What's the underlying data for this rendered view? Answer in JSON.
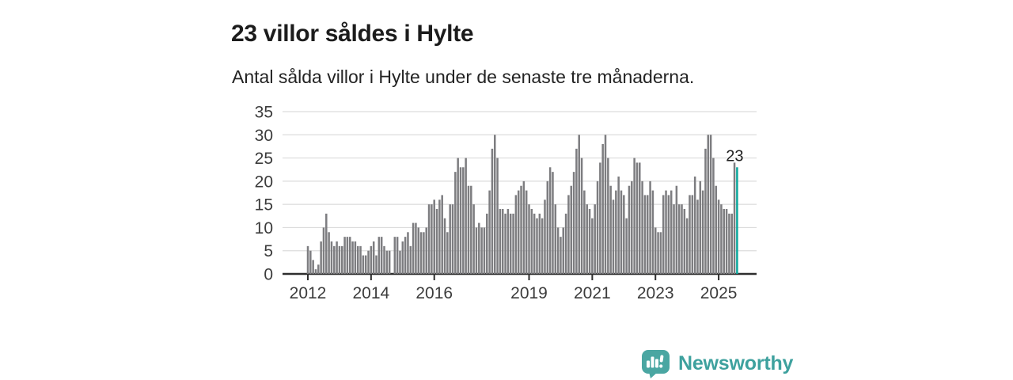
{
  "chart_data": {
    "type": "bar",
    "title": "23 villor såldes i Hylte",
    "subtitle": "Antal sålda villor i Hylte under de senaste tre månaderna.",
    "start_period": "2012-01",
    "frequency": "monthly",
    "values": [
      6,
      5,
      3,
      1,
      2,
      7,
      10,
      13,
      9,
      7,
      6,
      7,
      6,
      6,
      8,
      8,
      8,
      7,
      7,
      6,
      6,
      4,
      4,
      5,
      6,
      7,
      4,
      8,
      8,
      6,
      5,
      5,
      0,
      8,
      8,
      5,
      7,
      8,
      9,
      6,
      11,
      11,
      10,
      9,
      9,
      10,
      15,
      15,
      16,
      14,
      16,
      17,
      12,
      9,
      15,
      15,
      22,
      25,
      23,
      23,
      25,
      19,
      19,
      15,
      10,
      11,
      10,
      10,
      13,
      18,
      27,
      30,
      25,
      14,
      14,
      13,
      14,
      13,
      13,
      17,
      18,
      19,
      20,
      18,
      15,
      14,
      13,
      12,
      13,
      12,
      16,
      20,
      23,
      22,
      15,
      10,
      8,
      10,
      13,
      17,
      19,
      22,
      27,
      30,
      25,
      18,
      15,
      14,
      12,
      15,
      20,
      24,
      28,
      30,
      25,
      19,
      16,
      18,
      21,
      18,
      17,
      12,
      19,
      20,
      25,
      24,
      24,
      20,
      17,
      17,
      20,
      18,
      10,
      9,
      9,
      17,
      18,
      17,
      18,
      15,
      19,
      15,
      15,
      14,
      12,
      17,
      17,
      21,
      16,
      20,
      18,
      27,
      30,
      30,
      25,
      19,
      16,
      15,
      14,
      14,
      13,
      13,
      24,
      23
    ],
    "highlight": {
      "index": 163,
      "value": 23,
      "label": "23",
      "color": "#0aa79c"
    },
    "ylim": [
      0,
      35
    ],
    "yticks": [
      0,
      5,
      10,
      15,
      20,
      25,
      30,
      35
    ],
    "xticks": [
      2012,
      2014,
      2016,
      2019,
      2021,
      2023,
      2025
    ],
    "grid": true,
    "legend": "none",
    "bar_color": "#7d7d80",
    "axis_color": "#2e2e2e",
    "gridline_color": "#dcdcdc",
    "xlabel": "",
    "ylabel": ""
  },
  "footer": {
    "brand": "Newsworthy",
    "brand_color": "#3ea19e",
    "logo_icon": "bar-chart-speech-bubble-icon"
  }
}
